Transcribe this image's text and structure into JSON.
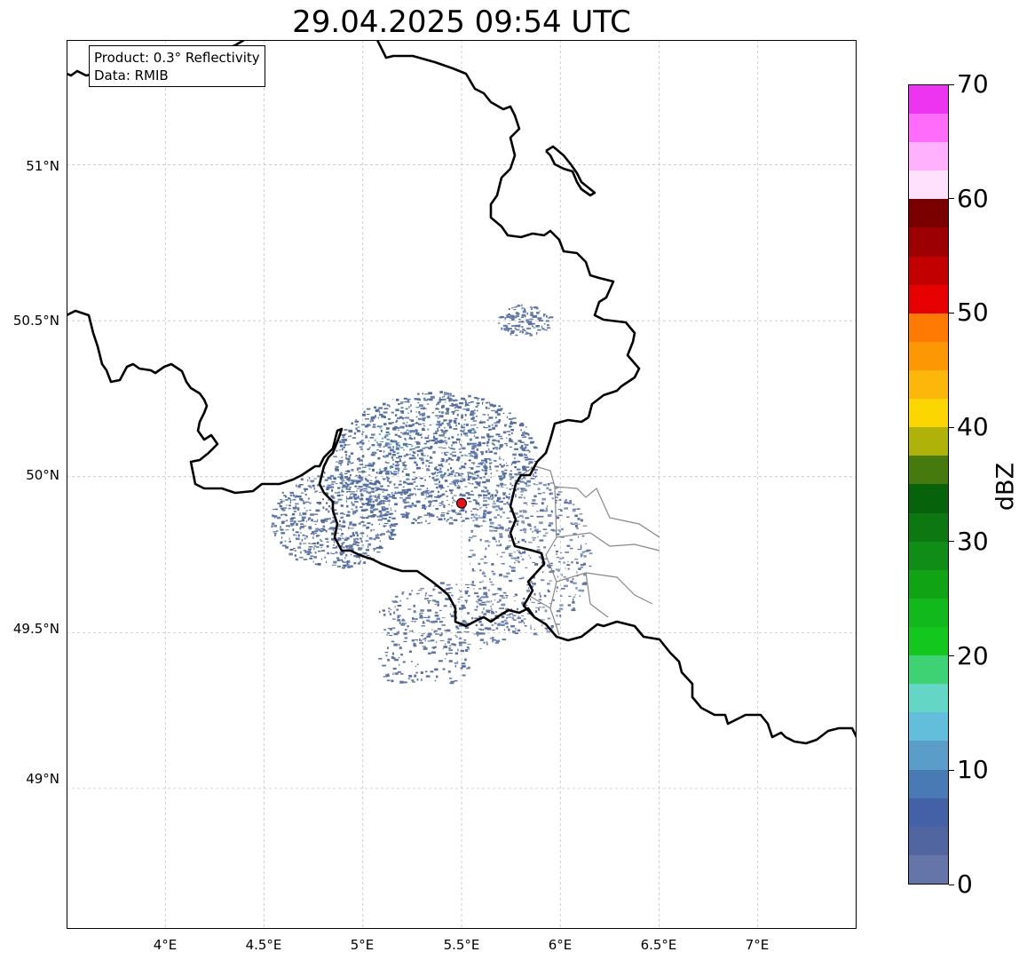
{
  "title": "29.04.2025 09:54 UTC",
  "info_box": {
    "product": "Product: 0.3° Reflectivity",
    "data": "Data: RMIB"
  },
  "map": {
    "lon_range": [
      3.5,
      7.5
    ],
    "lat_range": [
      48.55,
      51.4
    ],
    "lat_ticks": [
      {
        "value": 49.0,
        "label": "49°N"
      },
      {
        "value": 49.5,
        "label": "49.5°N"
      },
      {
        "value": 50.0,
        "label": "50°N"
      },
      {
        "value": 50.5,
        "label": "50.5°N"
      },
      {
        "value": 51.0,
        "label": "51°N"
      }
    ],
    "lon_ticks": [
      {
        "value": 4.0,
        "label": "4°E"
      },
      {
        "value": 4.5,
        "label": "4.5°E"
      },
      {
        "value": 5.0,
        "label": "5°E"
      },
      {
        "value": 5.5,
        "label": "5.5°E"
      },
      {
        "value": 6.0,
        "label": "6°E"
      },
      {
        "value": 6.5,
        "label": "6.5°E"
      },
      {
        "value": 7.0,
        "label": "7°E"
      }
    ],
    "radar_site": {
      "lon": 5.5,
      "lat": 49.915,
      "color": "#e8101a"
    },
    "gridlines": true
  },
  "colorbar": {
    "label": "dBZ",
    "min": 0,
    "max": 70,
    "ticks": [
      "0",
      "10",
      "20",
      "30",
      "40",
      "50",
      "60",
      "70"
    ],
    "colors": [
      "#6575a9",
      "#5165a0",
      "#4460a6",
      "#4a7ab4",
      "#5b9dc9",
      "#63bedb",
      "#63d6c6",
      "#3fd275",
      "#14c71e",
      "#12b91d",
      "#10a313",
      "#0f8d16",
      "#0d7712",
      "#06620b",
      "#467a0e",
      "#afb309",
      "#fbd600",
      "#fdb70a",
      "#fd9703",
      "#fe7a03",
      "#e60001",
      "#c20002",
      "#9c0003",
      "#7a0000",
      "#ffe1fd",
      "#ffb1fe",
      "#ff6cf9",
      "#ed35f1"
    ]
  }
}
